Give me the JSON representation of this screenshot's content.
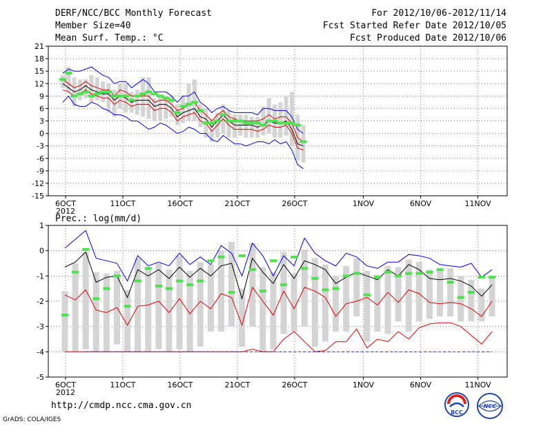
{
  "header": {
    "title": "DERF/NCC/BCC Monthly Forecast",
    "member_size": "Member Size=40",
    "variable": "Mean Surf. Temp.: °C",
    "period": "For 2012/10/06-2012/11/14",
    "fcst_started": "Fcst Started Refer Date 2012/10/05",
    "fcst_produced": "Fcst Produced Date 2012/10/06"
  },
  "footer": {
    "url": "http://cmdp.ncc.cma.gov.cn",
    "grads": "GrADS: COLA/IGES",
    "logo_left": "BCC",
    "logo_right": "NCC"
  },
  "colors": {
    "box": "#d4d4d4",
    "green": "#4ee14e",
    "blue": "#0000dd",
    "red": "#dd0000",
    "black": "#000000",
    "grid": "#777777",
    "dashed_blue": "#3333cc"
  },
  "chart_data": [
    {
      "type": "line",
      "name": "temperature",
      "label": "",
      "ylim": [
        -15,
        21
      ],
      "yticks": [
        21,
        18,
        15,
        12,
        9,
        6,
        3,
        0,
        -3,
        -6,
        -9,
        -12,
        -15
      ],
      "xticks": [
        {
          "day": 0,
          "label": "6OCT",
          "sub": "2012"
        },
        {
          "day": 5,
          "label": "11OCT"
        },
        {
          "day": 10,
          "label": "16OCT"
        },
        {
          "day": 15,
          "label": "21OCT"
        },
        {
          "day": 20,
          "label": "26OCT"
        },
        {
          "day": 26,
          "label": "1NOV"
        },
        {
          "day": 31,
          "label": "6NOV"
        },
        {
          "day": 36,
          "label": "11NOV"
        }
      ],
      "series": [
        {
          "name": "ensemble mean",
          "color": "black",
          "values": [
            12,
            11,
            10,
            10.5,
            11.5,
            10.5,
            10,
            9.5,
            9.5,
            8,
            9,
            8.5,
            7.5,
            8,
            8,
            8,
            6.5,
            7,
            7,
            6,
            4,
            5,
            5.5,
            6,
            4,
            3.5,
            1.5,
            3,
            4.5,
            3,
            2,
            2,
            2,
            2,
            1.5,
            2,
            3,
            2.5,
            2.5,
            3,
            1,
            -2.5,
            -3
          ]
        },
        {
          "name": "upper red",
          "color": "red",
          "values": [
            13,
            12,
            11,
            11.5,
            12.5,
            11.5,
            11,
            10.5,
            10.5,
            9,
            10.5,
            10,
            9,
            9,
            9,
            9,
            7.5,
            8,
            8,
            7,
            5.5,
            6,
            7,
            7.5,
            5.5,
            4.5,
            3,
            4.5,
            5.5,
            4,
            3.5,
            3,
            3,
            3,
            3,
            3.5,
            4.5,
            3.5,
            4,
            4,
            2.5,
            -1,
            -2
          ]
        },
        {
          "name": "lower red",
          "color": "red",
          "values": [
            10.5,
            10,
            9,
            9.5,
            10.5,
            9.5,
            9,
            8.5,
            8.5,
            7,
            8,
            7.5,
            6.5,
            7,
            7,
            7,
            5.5,
            6,
            6,
            5,
            3,
            4,
            4.5,
            5,
            3,
            2.5,
            0.5,
            2,
            3.5,
            2,
            1,
            1,
            1,
            1,
            0.5,
            1,
            2,
            1.5,
            1.5,
            2,
            0,
            -3.5,
            -4
          ]
        },
        {
          "name": "upper blue",
          "color": "blue",
          "values": [
            14.5,
            15.5,
            15,
            15,
            15.5,
            16,
            15,
            14,
            13.5,
            12,
            12.5,
            12.5,
            11,
            12,
            13,
            12,
            10,
            10,
            10,
            9,
            7.5,
            9,
            9,
            10,
            7.5,
            6.5,
            5,
            6,
            6.5,
            5.5,
            5,
            5,
            5,
            5,
            4.5,
            6,
            6,
            5.5,
            5.5,
            5.5,
            4,
            1,
            0
          ]
        },
        {
          "name": "lower blue",
          "color": "blue",
          "values": [
            7.5,
            9,
            7,
            6.5,
            6.5,
            7.5,
            7,
            6,
            5.5,
            4.5,
            4.5,
            4,
            3,
            3,
            2,
            1,
            1.5,
            2.5,
            2,
            1,
            0,
            0.5,
            1.5,
            1,
            0,
            0,
            -1.5,
            -2,
            -0.5,
            -1.5,
            -2.5,
            -2.5,
            -3,
            -2.5,
            -2,
            -2,
            -2.5,
            -1.5,
            -2.5,
            -2,
            -4,
            -7.5,
            -8.5
          ]
        },
        {
          "name": "observed",
          "color": "green",
          "style": "dash",
          "values": [
            13,
            14.5,
            9,
            9.5,
            10,
            9,
            9.5,
            10,
            10,
            9,
            9,
            9,
            8,
            9,
            9.5,
            10,
            9.5,
            9,
            8.5,
            8,
            5,
            6.5,
            7,
            7.5,
            5.5,
            2.5,
            2.5,
            3,
            4.5,
            3,
            3,
            3,
            2.5,
            2.5,
            2.5,
            2,
            3,
            3,
            2.5,
            2.5,
            2.5,
            2,
            -2
          ]
        },
        {
          "name": "box top",
          "color": "box",
          "values": [
            14,
            16,
            13.5,
            13,
            13,
            14,
            13.5,
            12.5,
            12,
            10.5,
            12,
            12,
            10,
            10.5,
            13.5,
            13.5,
            8.5,
            9,
            9,
            9,
            7,
            9,
            12,
            13,
            7,
            6,
            3.5,
            5,
            7,
            5.5,
            4.5,
            4.5,
            4.5,
            4,
            4,
            6.5,
            8.5,
            7,
            7.5,
            9,
            10,
            4.5,
            2
          ]
        },
        {
          "name": "box bottom",
          "color": "box",
          "values": [
            11,
            10,
            6.5,
            8,
            8.5,
            7.5,
            8,
            7.5,
            5,
            4,
            6,
            5,
            5,
            4.5,
            4,
            3.5,
            3,
            3,
            3.5,
            4,
            2,
            2.5,
            3,
            3,
            1.5,
            -1,
            -2,
            -1,
            0,
            -1,
            -1,
            -0.5,
            -1,
            -1,
            -1,
            -0.5,
            0,
            -1,
            -1,
            -0.5,
            -3,
            -6.5,
            -7
          ]
        }
      ]
    },
    {
      "type": "line",
      "name": "precipitation",
      "label": "Prec.: log(mm/d)",
      "ylim": [
        -5,
        1
      ],
      "yticks": [
        1,
        0,
        -1,
        -2,
        -3,
        -4,
        -5
      ],
      "xticks": [
        {
          "day": 0,
          "label": "6OCT",
          "sub": "2012"
        },
        {
          "day": 5,
          "label": "11OCT"
        },
        {
          "day": 10,
          "label": "16OCT"
        },
        {
          "day": 15,
          "label": "21OCT"
        },
        {
          "day": 20,
          "label": "26OCT"
        },
        {
          "day": 26,
          "label": "1NOV"
        },
        {
          "day": 31,
          "label": "6NOV"
        },
        {
          "day": 36,
          "label": "11NOV"
        }
      ],
      "series": [
        {
          "name": "ensemble mean",
          "color": "black",
          "values": [
            -0.65,
            -0.45,
            -0.05,
            -1.25,
            -1.05,
            -1.0,
            -1.85,
            -0.75,
            -1.0,
            -0.75,
            -1.1,
            -0.65,
            -1.05,
            -0.7,
            -1.0,
            -0.6,
            -0.5,
            -1.9,
            -0.3,
            -0.85,
            -1.3,
            -0.55,
            -1.1,
            -0.4,
            -0.55,
            -0.75,
            -1.3,
            -1.05,
            -0.85,
            -1.0,
            -1.15,
            -0.75,
            -1.0,
            -0.55,
            -0.75,
            -1.1,
            -1.15,
            -1.1,
            -1.2,
            -1.4,
            -1.8,
            -1.35
          ]
        },
        {
          "name": "upper blue",
          "color": "blue",
          "values": [
            0.1,
            0.45,
            0.8,
            -0.3,
            -0.4,
            -0.5,
            -1.2,
            -0.2,
            -0.6,
            -0.45,
            -0.6,
            -0.1,
            -0.55,
            -0.25,
            -0.55,
            0.2,
            -0.1,
            -1.0,
            0.3,
            -0.2,
            -1.0,
            -0.2,
            -0.6,
            0.5,
            -0.1,
            -0.4,
            -0.6,
            -0.1,
            -0.25,
            -0.6,
            -0.7,
            -0.45,
            -0.45,
            -0.15,
            -0.2,
            -0.3,
            -0.55,
            -0.6,
            -0.65,
            -0.5,
            -1.05,
            -0.75
          ]
        },
        {
          "name": "upper red",
          "color": "red",
          "values": [
            -1.75,
            -1.95,
            -1.55,
            -2.35,
            -2.45,
            -2.25,
            -2.95,
            -2.2,
            -2.15,
            -2.0,
            -2.45,
            -1.9,
            -2.5,
            -2.0,
            -2.3,
            -1.7,
            -1.85,
            -2.95,
            -1.45,
            -2.0,
            -2.55,
            -1.6,
            -2.3,
            -1.45,
            -1.6,
            -1.85,
            -2.6,
            -2.1,
            -2.0,
            -1.85,
            -2.15,
            -1.65,
            -2.05,
            -1.55,
            -1.7,
            -2.05,
            -2.1,
            -2.05,
            -2.1,
            -2.3,
            -2.6,
            -2.0
          ]
        },
        {
          "name": "lower red",
          "color": "red",
          "values": [
            -4,
            -4,
            -4,
            -4,
            -4,
            -4,
            -4,
            -4,
            -4,
            -4,
            -4,
            -4,
            -4,
            -4,
            -4,
            -4,
            -4,
            -4,
            -3.9,
            -4,
            -4,
            -3.5,
            -3.2,
            -3.6,
            -4,
            -3.95,
            -3.6,
            -3.6,
            -3.1,
            -3.85,
            -3.5,
            -3.6,
            -3.2,
            -3.5,
            -3.05,
            -2.9,
            -2.85,
            -2.85,
            -3.0,
            -3.35,
            -3.7,
            -3.2
          ]
        },
        {
          "name": "observed",
          "color": "green",
          "style": "dash",
          "values": [
            -2.55,
            -0.85,
            0.05,
            -1.9,
            -1.5,
            -1.0,
            -2.2,
            -1.2,
            -0.7,
            -1.4,
            -1.5,
            -1.2,
            -1.35,
            -1.2,
            -0.4,
            -0.25,
            -1.65,
            -0.2,
            -0.75,
            -1.6,
            -0.4,
            -1.35,
            -0.25,
            -0.7,
            -1.1,
            -1.55,
            -1.5,
            -1.0,
            -0.9,
            -1.75,
            -1.05,
            -0.85,
            -1.0,
            -0.9,
            -0.9,
            -0.85,
            -0.75,
            -1.25,
            -1.85,
            -1.65,
            -1.05,
            -1.05
          ]
        },
        {
          "name": "box top",
          "color": "box",
          "values": [
            -1.6,
            -0.5,
            -0.05,
            -0.85,
            -0.9,
            -0.8,
            -1.55,
            -0.3,
            -0.7,
            -0.5,
            -0.75,
            -0.2,
            -0.8,
            -0.45,
            -0.55,
            0.0,
            0.35,
            -1.5,
            0.3,
            -0.65,
            -0.85,
            -0.05,
            -0.9,
            0.05,
            -0.3,
            -0.55,
            -1.0,
            -0.6,
            -0.3,
            -0.8,
            -0.95,
            -0.6,
            -0.65,
            -0.35,
            -0.45,
            -0.75,
            -0.8,
            -0.7,
            -1.0,
            -1.15,
            -1.5,
            -1.0
          ]
        },
        {
          "name": "box bottom",
          "color": "box",
          "values": [
            -4.0,
            -4.0,
            -3.9,
            -4.0,
            -4.0,
            -3.7,
            -4.0,
            -4.0,
            -4.0,
            -3.9,
            -4.0,
            -3.9,
            -4.0,
            -3.8,
            -3.2,
            -3.2,
            -3.0,
            -3.8,
            -3.0,
            -4.0,
            -3.9,
            -3.3,
            -3.2,
            -3.0,
            -3.8,
            -3.6,
            -3.2,
            -3.2,
            -2.6,
            -3.6,
            -3.2,
            -3.3,
            -2.8,
            -3.2,
            -2.8,
            -2.7,
            -2.6,
            -2.6,
            -2.8,
            -2.8,
            -2.8,
            -2.6
          ]
        }
      ]
    }
  ]
}
